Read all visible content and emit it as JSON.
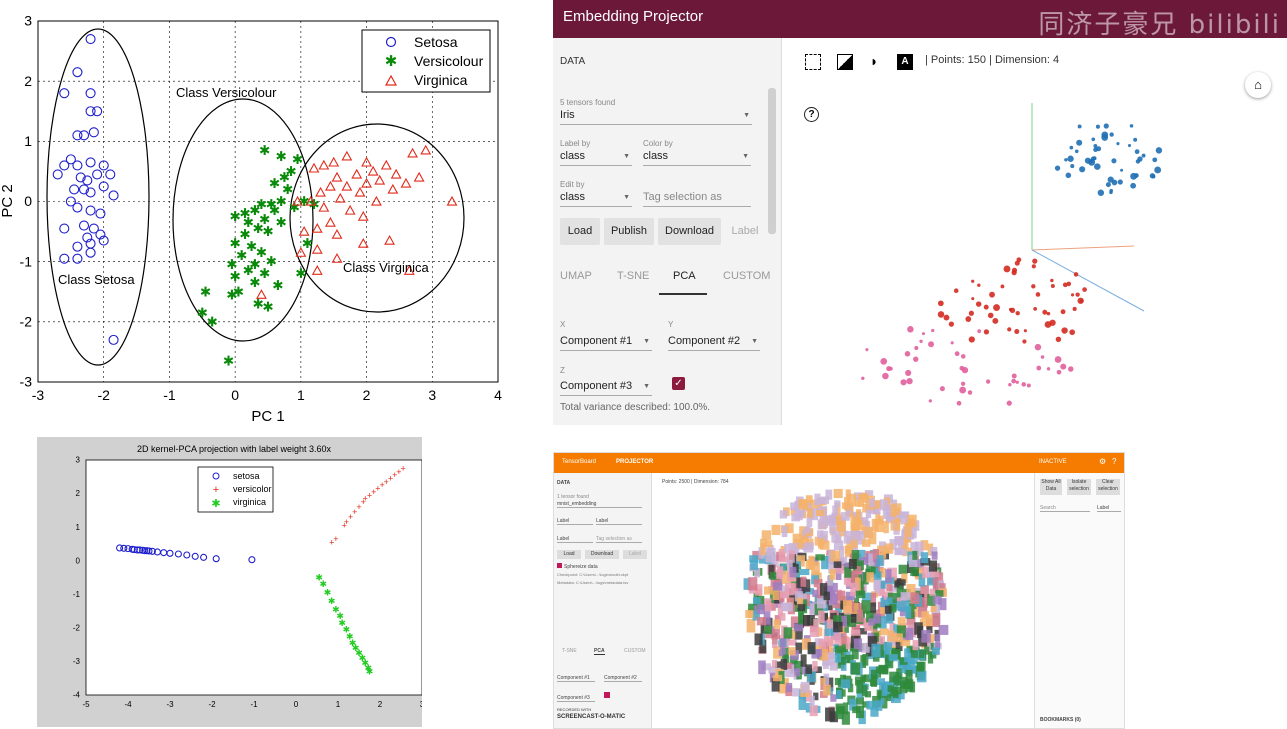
{
  "chart_data": [
    {
      "type": "scatter",
      "xlabel": "PC 1",
      "ylabel": "PC 2",
      "xlim": [
        -3,
        4
      ],
      "ylim": [
        -3,
        3
      ],
      "xticks": [
        "-3",
        "-2",
        "-1",
        "0",
        "1",
        "2",
        "3",
        "4"
      ],
      "yticks": [
        "-3",
        "-2",
        "-1",
        "0",
        "1",
        "2",
        "3"
      ],
      "grid": true,
      "legend_position": "top-right",
      "annotations": [
        "Class Versicolour",
        "Class Setosa",
        "Class Virginica"
      ],
      "colors": {
        "setosa": "#1f1fcc",
        "versicolour": "#0a8a0a",
        "virginica": "#e02a1a"
      },
      "series": [
        {
          "name": "Setosa",
          "marker": "circle",
          "points": [
            [
              -2.2,
              2.7
            ],
            [
              -2.4,
              2.15
            ],
            [
              -2.6,
              1.8
            ],
            [
              -2.2,
              1.5
            ],
            [
              -2.1,
              1.5
            ],
            [
              -2.2,
              1.8
            ],
            [
              -2.4,
              1.1
            ],
            [
              -2.3,
              1.1
            ],
            [
              -2.15,
              1.15
            ],
            [
              -2.5,
              0.7
            ],
            [
              -2.6,
              0.6
            ],
            [
              -2.4,
              0.6
            ],
            [
              -2.2,
              0.65
            ],
            [
              -2.0,
              0.6
            ],
            [
              -2.35,
              0.4
            ],
            [
              -2.25,
              0.35
            ],
            [
              -2.1,
              0.45
            ],
            [
              -1.9,
              0.45
            ],
            [
              -2.7,
              0.45
            ],
            [
              -2.45,
              0.2
            ],
            [
              -2.3,
              0.2
            ],
            [
              -2.2,
              0.15
            ],
            [
              -2.0,
              0.25
            ],
            [
              -1.85,
              0.1
            ],
            [
              -2.5,
              0.0
            ],
            [
              -2.4,
              -0.1
            ],
            [
              -2.2,
              -0.15
            ],
            [
              -2.05,
              -0.2
            ],
            [
              -2.6,
              -0.45
            ],
            [
              -2.3,
              -0.4
            ],
            [
              -2.15,
              -0.45
            ],
            [
              -2.25,
              -0.6
            ],
            [
              -2.05,
              -0.55
            ],
            [
              -2.4,
              -0.75
            ],
            [
              -2.2,
              -0.7
            ],
            [
              -2.0,
              -0.65
            ],
            [
              -2.6,
              -0.95
            ],
            [
              -2.4,
              -0.95
            ],
            [
              -2.2,
              -0.85
            ],
            [
              -1.85,
              -2.3
            ]
          ]
        },
        {
          "name": "Versicolour",
          "marker": "star",
          "points": [
            [
              0.45,
              0.85
            ],
            [
              0.7,
              0.75
            ],
            [
              0.85,
              0.5
            ],
            [
              0.75,
              0.4
            ],
            [
              0.6,
              0.3
            ],
            [
              0.8,
              0.2
            ],
            [
              0.7,
              0.0
            ],
            [
              0.9,
              -0.1
            ],
            [
              0.55,
              -0.05
            ],
            [
              0.4,
              -0.05
            ],
            [
              0.3,
              -0.15
            ],
            [
              0.6,
              -0.15
            ],
            [
              0.15,
              -0.2
            ],
            [
              0.0,
              -0.25
            ],
            [
              0.45,
              -0.3
            ],
            [
              0.2,
              -0.35
            ],
            [
              0.7,
              -0.35
            ],
            [
              0.35,
              -0.45
            ],
            [
              0.5,
              -0.5
            ],
            [
              0.15,
              -0.55
            ],
            [
              0.0,
              -0.7
            ],
            [
              0.25,
              -0.75
            ],
            [
              0.4,
              -0.85
            ],
            [
              0.1,
              -0.9
            ],
            [
              0.3,
              -1.05
            ],
            [
              0.55,
              -1.0
            ],
            [
              -0.05,
              -1.05
            ],
            [
              0.2,
              -1.15
            ],
            [
              0.45,
              -1.2
            ],
            [
              0.0,
              -1.25
            ],
            [
              0.3,
              -1.35
            ],
            [
              0.65,
              -1.4
            ],
            [
              0.05,
              -1.5
            ],
            [
              -0.45,
              -1.5
            ],
            [
              0.35,
              -1.7
            ],
            [
              0.5,
              -1.75
            ],
            [
              -0.5,
              -1.85
            ],
            [
              -0.35,
              -2.0
            ],
            [
              -0.05,
              -1.55
            ],
            [
              -0.1,
              -2.65
            ],
            [
              1.0,
              -1.2
            ],
            [
              1.05,
              0.0
            ],
            [
              1.2,
              -0.05
            ],
            [
              1.1,
              -0.7
            ],
            [
              0.95,
              0.7
            ]
          ]
        },
        {
          "name": "Virginica",
          "marker": "triangle",
          "points": [
            [
              2.7,
              0.8
            ],
            [
              2.9,
              0.85
            ],
            [
              1.7,
              0.75
            ],
            [
              1.5,
              0.65
            ],
            [
              2.0,
              0.65
            ],
            [
              1.35,
              0.6
            ],
            [
              2.3,
              0.6
            ],
            [
              1.2,
              0.55
            ],
            [
              2.1,
              0.5
            ],
            [
              2.45,
              0.45
            ],
            [
              1.85,
              0.45
            ],
            [
              1.55,
              0.4
            ],
            [
              2.2,
              0.35
            ],
            [
              2.8,
              0.4
            ],
            [
              1.45,
              0.25
            ],
            [
              2.0,
              0.3
            ],
            [
              2.4,
              0.2
            ],
            [
              1.7,
              0.25
            ],
            [
              2.6,
              0.3
            ],
            [
              1.3,
              0.15
            ],
            [
              1.9,
              0.15
            ],
            [
              1.6,
              0.05
            ],
            [
              1.15,
              0.0
            ],
            [
              0.95,
              0.0
            ],
            [
              2.15,
              0.0
            ],
            [
              1.35,
              -0.1
            ],
            [
              1.75,
              -0.15
            ],
            [
              1.95,
              -0.25
            ],
            [
              1.45,
              -0.35
            ],
            [
              1.25,
              -0.45
            ],
            [
              1.05,
              -0.5
            ],
            [
              1.55,
              -0.55
            ],
            [
              1.95,
              -0.7
            ],
            [
              2.35,
              -0.65
            ],
            [
              1.25,
              -0.8
            ],
            [
              1.0,
              -0.85
            ],
            [
              1.55,
              -0.95
            ],
            [
              1.25,
              -1.15
            ],
            [
              2.65,
              -1.15
            ],
            [
              3.3,
              0.0
            ],
            [
              0.4,
              -1.55
            ]
          ]
        }
      ]
    },
    {
      "type": "scatter",
      "title": "2D kernel-PCA projection with label weight 3.60x",
      "xlim": [
        -5,
        3
      ],
      "ylim": [
        -4,
        3
      ],
      "xticks": [
        "-5",
        "-4",
        "-3",
        "-2",
        "-1",
        "0",
        "1",
        "2",
        "3"
      ],
      "yticks": [
        "-4",
        "-3",
        "-2",
        "-1",
        "0",
        "1",
        "2",
        "3"
      ],
      "legend_position": "top-center",
      "colors": {
        "setosa": "#1f1fcc",
        "versicolor": "#e02a1a",
        "virginica": "#22cc22"
      },
      "series": [
        {
          "name": "setosa",
          "marker": "circle",
          "points": [
            [
              -4.2,
              0.38
            ],
            [
              -4.1,
              0.37
            ],
            [
              -4.0,
              0.36
            ],
            [
              -3.9,
              0.34
            ],
            [
              -3.85,
              0.33
            ],
            [
              -3.78,
              0.32
            ],
            [
              -3.72,
              0.32
            ],
            [
              -3.65,
              0.31
            ],
            [
              -3.6,
              0.3
            ],
            [
              -3.55,
              0.3
            ],
            [
              -3.5,
              0.29
            ],
            [
              -3.42,
              0.28
            ],
            [
              -3.3,
              0.26
            ],
            [
              -3.15,
              0.24
            ],
            [
              -3.0,
              0.22
            ],
            [
              -2.8,
              0.2
            ],
            [
              -2.6,
              0.17
            ],
            [
              -2.4,
              0.13
            ],
            [
              -2.2,
              0.1
            ],
            [
              -1.9,
              0.06
            ],
            [
              -1.05,
              0.03
            ]
          ]
        },
        {
          "name": "versicolor",
          "marker": "plus",
          "points": [
            [
              0.85,
              0.55
            ],
            [
              0.95,
              0.65
            ],
            [
              1.15,
              1.05
            ],
            [
              1.2,
              1.15
            ],
            [
              1.3,
              1.3
            ],
            [
              1.4,
              1.45
            ],
            [
              1.5,
              1.6
            ],
            [
              1.6,
              1.75
            ],
            [
              1.65,
              1.85
            ],
            [
              1.75,
              1.95
            ],
            [
              1.85,
              2.05
            ],
            [
              1.95,
              2.15
            ],
            [
              2.05,
              2.25
            ],
            [
              2.15,
              2.35
            ],
            [
              2.25,
              2.45
            ],
            [
              2.35,
              2.55
            ],
            [
              2.45,
              2.65
            ],
            [
              2.55,
              2.75
            ]
          ]
        },
        {
          "name": "virginica",
          "marker": "star",
          "points": [
            [
              0.55,
              -0.5
            ],
            [
              0.65,
              -0.7
            ],
            [
              0.75,
              -0.95
            ],
            [
              0.85,
              -1.2
            ],
            [
              0.95,
              -1.45
            ],
            [
              1.05,
              -1.65
            ],
            [
              1.1,
              -1.85
            ],
            [
              1.2,
              -2.05
            ],
            [
              1.28,
              -2.25
            ],
            [
              1.35,
              -2.45
            ],
            [
              1.42,
              -2.6
            ],
            [
              1.5,
              -2.75
            ],
            [
              1.58,
              -2.9
            ],
            [
              1.65,
              -3.05
            ],
            [
              1.72,
              -3.2
            ],
            [
              1.75,
              -3.3
            ]
          ]
        }
      ]
    },
    {
      "type": "scatter",
      "dimension": "3d",
      "colors": {
        "cluster_blue": "#1f6fb4",
        "cluster_red": "#d42a20",
        "cluster_pink": "#e15f9c"
      }
    }
  ],
  "projector": {
    "app_title": "Embedding Projector",
    "watermark": "同济子豪兄 bilibili",
    "data_section": "DATA",
    "tensors_found": "5 tensors found",
    "dataset": "Iris",
    "label_by_label": "Label by",
    "label_by_value": "class",
    "color_by_label": "Color by",
    "color_by_value": "class",
    "edit_by_label": "Edit by",
    "edit_by_value": "class",
    "tag_placeholder": "Tag selection as",
    "buttons": [
      "Load",
      "Publish",
      "Download",
      "Label"
    ],
    "tabs": [
      "UMAP",
      "T-SNE",
      "PCA",
      "CUSTOM"
    ],
    "x_label": "X",
    "x_value": "Component #1",
    "y_label": "Y",
    "y_value": "Component #2",
    "z_label": "Z",
    "z_value": "Component #3",
    "variance": "Total variance described: 100.0%.",
    "points_stat": "Points: 150",
    "dimension_stat": "Dimension: 4",
    "help_icon": "?"
  },
  "tensorboard": {
    "app_title": "TensorBoard",
    "tab": "PROJECTOR",
    "inactive": "INACTIVE",
    "data_section": "DATA",
    "tensors_found": "1 tensor found",
    "dataset": "mnist_embedding",
    "label_by": "Label",
    "color_by": "Label",
    "edit_by": "Label",
    "tag_placeholder": "Tag selection as",
    "buttons": [
      "Load",
      "Download",
      "Label"
    ],
    "sphereize": "Sphereize data",
    "checkpoint": "Checkpoint: C:\\Users\\...\\logs\\model.ckpt",
    "metadata": "Metadata: C:\\Users\\...\\logs\\metadata.tsv",
    "stats": "Points: 2500 | Dimension: 784",
    "tabs": [
      "T-SNE",
      "PCA",
      "CUSTOM"
    ],
    "x_value": "Component #1",
    "y_value": "Component #2",
    "z_value": "Component #3",
    "right_buttons": [
      "Show All Data",
      "Isolate selection",
      "Clear selection"
    ],
    "search_placeholder": "Search",
    "search_by": "Label",
    "bookmarks": "BOOKMARKS (0)",
    "recorded_with": "RECORDED WITH",
    "screencast": "SCREENCAST-O-MATIC"
  }
}
